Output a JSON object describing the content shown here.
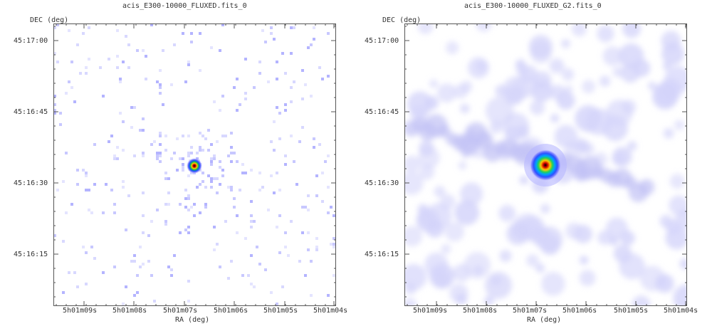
{
  "chart_data": [
    {
      "type": "heatmap",
      "title": "acis_E300-10000_FLUXED.fits_0",
      "xlabel": "RA (deg)",
      "ylabel": "DEC (deg)",
      "x_ticks": [
        "5h01m09s",
        "5h01m08s",
        "5h01m07s",
        "5h01m06s",
        "5h01m05s",
        "5h01m04s"
      ],
      "y_ticks": [
        "45:17:00",
        "45:16:45",
        "45:16:30",
        "45:16:15"
      ],
      "source": {
        "ra": "5h01m06.8s",
        "dec": "45:16:34"
      },
      "colormap": "white-lavender-blue-cyan-green-yellow-red-black",
      "smoothing": "none",
      "grid": false
    },
    {
      "type": "heatmap",
      "title": "acis_E300-10000_FLUXED_G2.fits_0",
      "xlabel": "RA (deg)",
      "ylabel": "DEC (deg)",
      "x_ticks": [
        "5h01m09s",
        "5h01m08s",
        "5h01m07s",
        "5h01m06s",
        "5h01m05s",
        "5h01m04s"
      ],
      "y_ticks": [
        "45:17:00",
        "45:16:45",
        "45:16:30",
        "45:16:15"
      ],
      "source": {
        "ra": "5h01m06.8s",
        "dec": "45:16:34"
      },
      "colormap": "white-lavender-blue-cyan-green-yellow-red-black",
      "smoothing": "gaussian",
      "grid": false
    }
  ]
}
